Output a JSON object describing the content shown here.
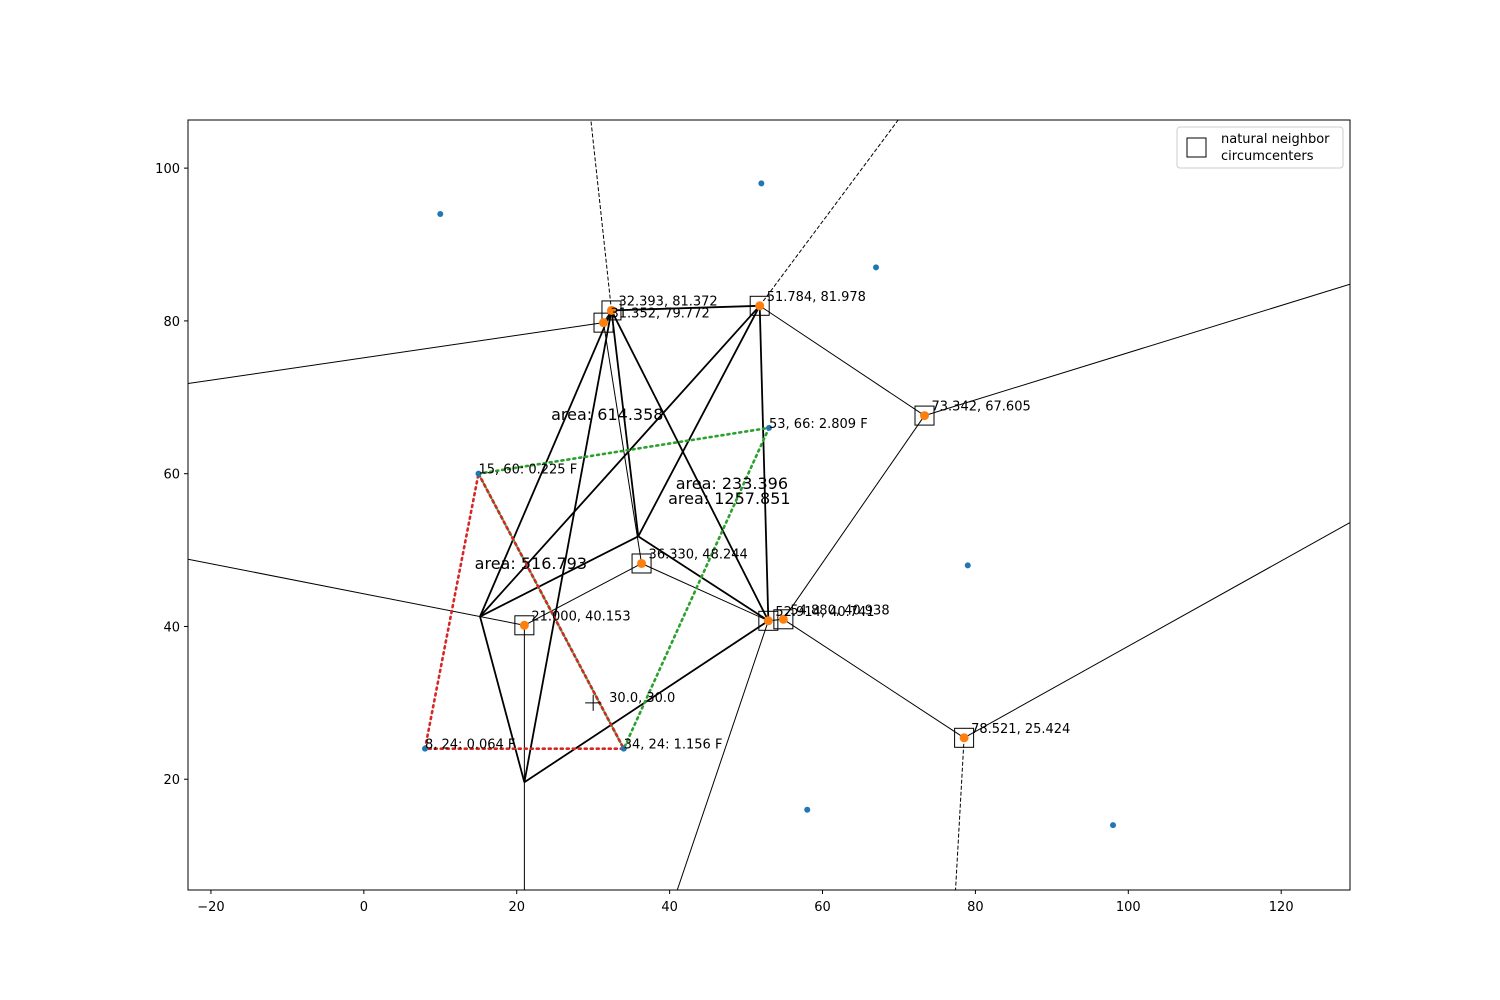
{
  "chart_data": {
    "type": "scatter",
    "title": "",
    "xlabel": "",
    "ylabel": "",
    "xlim": [
      -23,
      129
    ],
    "ylim": [
      5.5,
      106.3
    ],
    "grid": false,
    "legend_position": "top-right",
    "x_ticks": [
      -20,
      0,
      20,
      40,
      60,
      80,
      100,
      120
    ],
    "x_tick_labels": [
      "−20",
      "0",
      "20",
      "40",
      "60",
      "80",
      "100",
      "120"
    ],
    "y_ticks": [
      20,
      40,
      60,
      80,
      100
    ],
    "y_tick_labels": [
      "20",
      "40",
      "60",
      "80",
      "100"
    ],
    "colors": {
      "observation": "#1f77b4",
      "circumcenter": "#ff7f0e",
      "green_polygon": "#2ca02c",
      "red_polygon": "#d62728",
      "edges": "#000000"
    },
    "observations": [
      {
        "x": 10,
        "y": 94
      },
      {
        "x": 52,
        "y": 98
      },
      {
        "x": 67,
        "y": 87
      },
      {
        "x": 53,
        "y": 66
      },
      {
        "x": 15,
        "y": 60
      },
      {
        "x": 79,
        "y": 48
      },
      {
        "x": 8,
        "y": 24
      },
      {
        "x": 34,
        "y": 24
      },
      {
        "x": 58,
        "y": 16
      },
      {
        "x": 98,
        "y": 14
      }
    ],
    "observation_labels": [
      {
        "x": 53,
        "y": 66,
        "text": "53, 66: 2.809 F"
      },
      {
        "x": 15,
        "y": 60,
        "text": "15, 60: 0.225 F"
      },
      {
        "x": 8,
        "y": 24,
        "text": "8, 24: 0.064 F"
      },
      {
        "x": 34,
        "y": 24,
        "text": "34, 24: 1.156 F"
      }
    ],
    "circumcenters": [
      {
        "x": 32.393,
        "y": 81.372,
        "label": "32.393, 81.372"
      },
      {
        "x": 31.352,
        "y": 79.772,
        "label": "31.352, 79.772"
      },
      {
        "x": 51.784,
        "y": 81.978,
        "label": "51.784, 81.978"
      },
      {
        "x": 73.342,
        "y": 67.605,
        "label": "73.342, 67.605"
      },
      {
        "x": 36.33,
        "y": 48.244,
        "label": "36.330, 48.244"
      },
      {
        "x": 21.0,
        "y": 40.153,
        "label": "21.000, 40.153"
      },
      {
        "x": 52.914,
        "y": 40.741,
        "label": "52.914, 40.741"
      },
      {
        "x": 54.88,
        "y": 40.938,
        "label": "54.880, 40.938"
      },
      {
        "x": 78.521,
        "y": 25.424,
        "label": "78.521, 25.424"
      }
    ],
    "interpolation_point": {
      "x": 30.0,
      "y": 30.0,
      "label": "30.0, 30.0"
    },
    "area_labels": [
      {
        "x": 24.5,
        "y": 67,
        "text": "area: 614.358"
      },
      {
        "x": 40.8,
        "y": 58,
        "text": "area: 233.396"
      },
      {
        "x": 39.8,
        "y": 56,
        "text": "area: 1257.851"
      },
      {
        "x": 14.5,
        "y": 47.5,
        "text": "area: 516.793"
      }
    ],
    "voronoi_solid": [
      [
        [
          -23,
          71.8
        ],
        [
          31.352,
          79.772
        ]
      ],
      [
        [
          31.352,
          79.772
        ],
        [
          32.393,
          81.372
        ]
      ],
      [
        [
          32.393,
          81.372
        ],
        [
          51.784,
          81.978
        ]
      ],
      [
        [
          51.784,
          81.978
        ],
        [
          73.342,
          67.605
        ]
      ],
      [
        [
          73.342,
          67.605
        ],
        [
          129,
          84.8
        ]
      ],
      [
        [
          73.342,
          67.605
        ],
        [
          54.88,
          40.938
        ]
      ],
      [
        [
          54.88,
          40.938
        ],
        [
          52.914,
          40.741
        ]
      ],
      [
        [
          54.88,
          40.938
        ],
        [
          78.521,
          25.424
        ]
      ],
      [
        [
          78.521,
          25.424
        ],
        [
          129,
          53.6
        ]
      ],
      [
        [
          52.914,
          40.741
        ],
        [
          36.33,
          48.244
        ]
      ],
      [
        [
          36.33,
          48.244
        ],
        [
          21.0,
          40.153
        ]
      ],
      [
        [
          36.33,
          48.244
        ],
        [
          31.352,
          79.772
        ]
      ],
      [
        [
          21.0,
          40.153
        ],
        [
          -23,
          48.8
        ]
      ],
      [
        [
          21.0,
          40.153
        ],
        [
          21.0,
          5.5
        ]
      ],
      [
        [
          52.914,
          40.741
        ],
        [
          41.0,
          5.5
        ]
      ]
    ],
    "voronoi_dashed": [
      [
        [
          32.393,
          81.372
        ],
        [
          29.7,
          106.3
        ]
      ],
      [
        [
          51.784,
          81.978
        ],
        [
          69.9,
          106.3
        ]
      ],
      [
        [
          78.521,
          25.424
        ],
        [
          77.4,
          5.5
        ]
      ]
    ],
    "triangle_vertices": [
      {
        "x": 32.393,
        "y": 81.372
      },
      {
        "x": 51.784,
        "y": 81.978
      },
      {
        "x": 15.2,
        "y": 41.3
      },
      {
        "x": 35.9,
        "y": 51.8
      },
      {
        "x": 52.914,
        "y": 40.741
      },
      {
        "x": 21.0,
        "y": 19.6
      }
    ],
    "triangle_edges": [
      [
        0,
        1
      ],
      [
        0,
        2
      ],
      [
        0,
        3
      ],
      [
        0,
        4
      ],
      [
        0,
        5
      ],
      [
        1,
        2
      ],
      [
        1,
        3
      ],
      [
        1,
        4
      ],
      [
        2,
        3
      ],
      [
        2,
        5
      ],
      [
        3,
        4
      ],
      [
        4,
        5
      ]
    ],
    "green_polygon": [
      [
        15,
        60
      ],
      [
        53,
        66
      ],
      [
        34,
        24
      ]
    ],
    "red_polygon": [
      [
        15,
        60
      ],
      [
        34,
        24
      ],
      [
        8,
        24
      ]
    ],
    "legend": {
      "entries": [
        {
          "marker": "square",
          "label_lines": [
            "natural neighbor",
            "circumcenters"
          ]
        }
      ]
    }
  }
}
